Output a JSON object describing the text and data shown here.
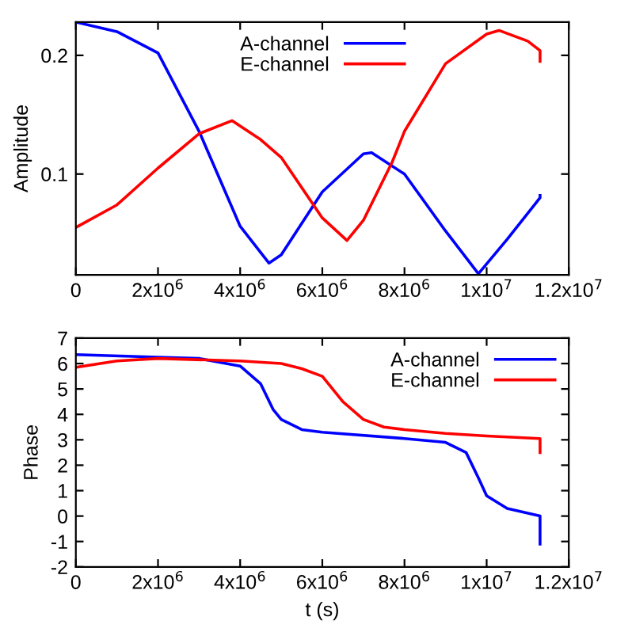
{
  "chart_data": [
    {
      "type": "line",
      "ylabel": "Amplitude",
      "xlim": [
        0,
        12000000
      ],
      "ylim": [
        0.015,
        0.228
      ],
      "xticks": [
        0,
        {
          "value": 2000000,
          "label": "2x10$^{6}$"
        },
        {
          "value": 4000000,
          "label": "4x10$^{6}$"
        },
        {
          "value": 6000000,
          "label": "6x10$^{6}$"
        },
        {
          "value": 8000000,
          "label": "8x10$^{6}$"
        },
        {
          "value": 10000000,
          "label": "1x10$^{7}$"
        },
        {
          "value": 12000000,
          "label": "1.2x10$^{7}$"
        }
      ],
      "yticks": [
        0.1,
        0.2
      ],
      "legend": "top",
      "grid": false,
      "line_style": "solid",
      "series": [
        {
          "name": "A-channel",
          "color": "#0000ff",
          "x": [
            0,
            1000000,
            2000000,
            3000000,
            4000000,
            4700000,
            5000000,
            6000000,
            7000000,
            7200000,
            8000000,
            9000000,
            9800000,
            10500000,
            11300000,
            11300000
          ],
          "values": [
            0.228,
            0.22,
            0.202,
            0.136,
            0.056,
            0.025,
            0.032,
            0.085,
            0.117,
            0.118,
            0.1,
            0.052,
            0.016,
            0.045,
            0.08,
            0.082
          ]
        },
        {
          "name": "E-channel",
          "color": "#ff0000",
          "x": [
            0,
            1000000,
            2000000,
            3000000,
            3800000,
            4500000,
            5000000,
            6000000,
            6600000,
            7000000,
            7700000,
            8000000,
            9000000,
            10000000,
            10300000,
            11000000,
            11300000,
            11300000
          ],
          "values": [
            0.055,
            0.074,
            0.105,
            0.134,
            0.145,
            0.129,
            0.114,
            0.063,
            0.044,
            0.061,
            0.11,
            0.136,
            0.193,
            0.218,
            0.221,
            0.212,
            0.204,
            0.195
          ]
        }
      ]
    },
    {
      "type": "line",
      "xlabel": "t (s)",
      "ylabel": "Phase",
      "xlim": [
        0,
        12000000
      ],
      "ylim": [
        -2,
        7
      ],
      "xticks": [
        0,
        {
          "value": 2000000,
          "label": "2x10$^{6}$"
        },
        {
          "value": 4000000,
          "label": "4x10$^{6}$"
        },
        {
          "value": 6000000,
          "label": "6x10$^{6}$"
        },
        {
          "value": 8000000,
          "label": "8x10$^{6}$"
        },
        {
          "value": 10000000,
          "label": "1x10$^{7}$"
        },
        {
          "value": 12000000,
          "label": "1.2x10$^{7}$"
        }
      ],
      "yticks": [
        -2,
        -1,
        0,
        1,
        2,
        3,
        4,
        5,
        6,
        7
      ],
      "legend": "top right",
      "grid": false,
      "line_style": "solid",
      "series": [
        {
          "name": "A-channel",
          "color": "#0000ff",
          "x": [
            0,
            2000000,
            3000000,
            4000000,
            4500000,
            4800000,
            5000000,
            5500000,
            6000000,
            8000000,
            9000000,
            9500000,
            9800000,
            10000000,
            10500000,
            11300000,
            11300000
          ],
          "values": [
            6.35,
            6.25,
            6.2,
            5.9,
            5.2,
            4.2,
            3.8,
            3.4,
            3.3,
            3.05,
            2.9,
            2.5,
            1.5,
            0.8,
            0.3,
            0.0,
            -1.1
          ]
        },
        {
          "name": "E-channel",
          "color": "#ff0000",
          "x": [
            0,
            1000000,
            2000000,
            4000000,
            5000000,
            5500000,
            6000000,
            6500000,
            7000000,
            7500000,
            8000000,
            9000000,
            10000000,
            11300000,
            11300000
          ],
          "values": [
            5.85,
            6.1,
            6.2,
            6.1,
            6.0,
            5.8,
            5.5,
            4.5,
            3.8,
            3.5,
            3.4,
            3.25,
            3.15,
            3.05,
            2.5
          ]
        }
      ]
    }
  ]
}
